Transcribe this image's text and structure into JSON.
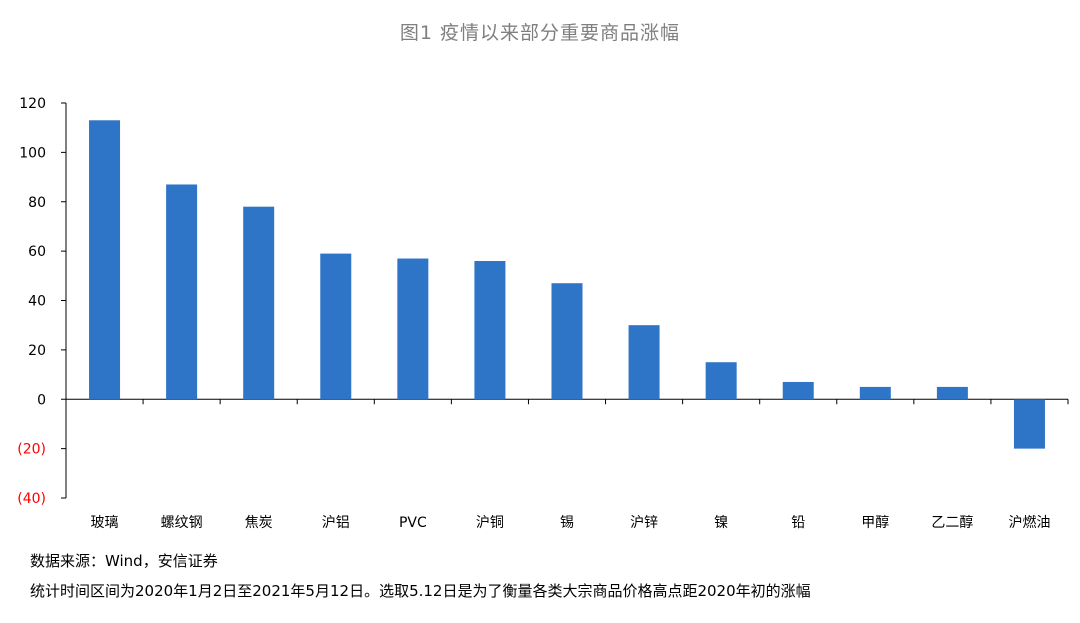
{
  "chart_data": {
    "type": "bar",
    "title": "图1  疫情以来部分重要商品涨幅",
    "categories": [
      "玻璃",
      "螺纹钢",
      "焦炭",
      "沪铝",
      "PVC",
      "沪铜",
      "锡",
      "沪锌",
      "镍",
      "铅",
      "甲醇",
      "乙二醇",
      "沪燃油"
    ],
    "values": [
      113,
      87,
      78,
      59,
      57,
      56,
      47,
      30,
      15,
      7,
      5,
      5,
      -20
    ],
    "yticks": [
      "120",
      "100",
      "80",
      "60",
      "40",
      "20",
      "0",
      "(20)",
      "(40)"
    ],
    "ylim": [
      -40,
      120
    ],
    "xlabel": "",
    "ylabel": "",
    "bar_color": "#2e75c7",
    "negative_tick_color": "#ff0000",
    "grid": false
  },
  "footer": {
    "source": "数据来源：Wind，安信证券",
    "note": "统计时间区间为2020年1月2日至2021年5月12日。选取5.12日是为了衡量各类大宗商品价格高点距2020年初的涨幅"
  }
}
